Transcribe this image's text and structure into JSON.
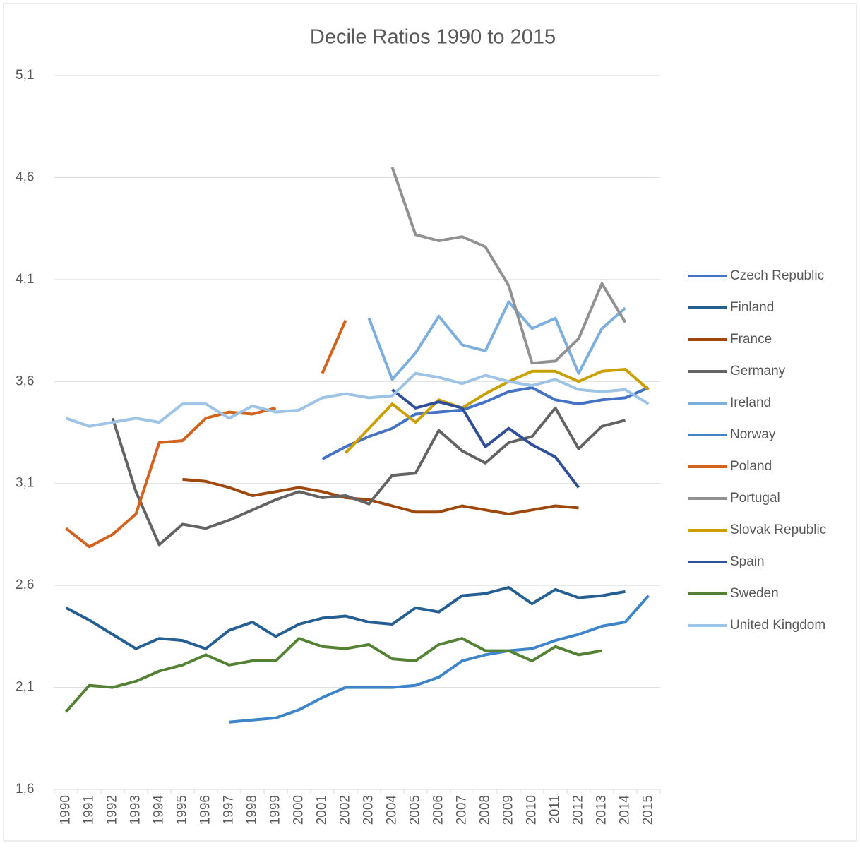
{
  "chart_data": {
    "type": "line",
    "title": "Decile Ratios 1990 to 2015",
    "categories": [
      "1990",
      "1991",
      "1992",
      "1993",
      "1994",
      "1995",
      "1996",
      "1997",
      "1998",
      "1999",
      "2000",
      "2001",
      "2002",
      "2003",
      "2004",
      "2005",
      "2006",
      "2007",
      "2008",
      "2009",
      "2010",
      "2011",
      "2012",
      "2013",
      "2014",
      "2015"
    ],
    "ylim": [
      1.6,
      5.1
    ],
    "yticks": [
      {
        "value": 1.6,
        "label": "1,6"
      },
      {
        "value": 2.1,
        "label": "2,1"
      },
      {
        "value": 2.6,
        "label": "2,6"
      },
      {
        "value": 3.1,
        "label": "3,1"
      },
      {
        "value": 3.6,
        "label": "3,6"
      },
      {
        "value": 4.1,
        "label": "4,1"
      },
      {
        "value": 4.6,
        "label": "4,6"
      },
      {
        "value": 5.1,
        "label": "5,1"
      }
    ],
    "grid": true,
    "legend": "right",
    "series": [
      {
        "name": "Czech Republic",
        "color": "#4472c4",
        "values": [
          null,
          null,
          null,
          null,
          null,
          null,
          null,
          null,
          null,
          null,
          null,
          3.22,
          3.28,
          3.33,
          3.37,
          3.44,
          3.45,
          3.46,
          3.5,
          3.55,
          3.57,
          3.51,
          3.49,
          3.51,
          3.52,
          3.57
        ]
      },
      {
        "name": "Finland",
        "color": "#255e91",
        "values": [
          2.49,
          2.43,
          2.36,
          2.29,
          2.34,
          2.33,
          2.29,
          2.38,
          2.42,
          2.35,
          2.41,
          2.44,
          2.45,
          2.42,
          2.41,
          2.49,
          2.47,
          2.55,
          2.56,
          2.59,
          2.51,
          2.58,
          2.54,
          2.55,
          2.57,
          null
        ]
      },
      {
        "name": "France",
        "color": "#9e480e",
        "values": [
          null,
          null,
          null,
          null,
          null,
          3.12,
          3.11,
          3.08,
          3.04,
          3.06,
          3.08,
          3.06,
          3.03,
          3.02,
          2.99,
          2.96,
          2.96,
          2.99,
          2.97,
          2.95,
          2.97,
          2.99,
          2.98,
          null,
          null,
          null
        ]
      },
      {
        "name": "Germany",
        "color": "#636363",
        "values": [
          null,
          null,
          3.42,
          3.06,
          2.8,
          2.9,
          2.88,
          2.92,
          2.97,
          3.02,
          3.06,
          3.03,
          3.04,
          3.0,
          3.14,
          3.15,
          3.36,
          3.26,
          3.2,
          3.3,
          3.33,
          3.47,
          3.27,
          3.38,
          3.41,
          null
        ]
      },
      {
        "name": "Ireland",
        "color": "#7cafdd",
        "values": [
          null,
          null,
          null,
          null,
          null,
          null,
          null,
          null,
          null,
          null,
          null,
          null,
          null,
          3.91,
          3.61,
          3.74,
          3.92,
          3.78,
          3.75,
          3.99,
          3.86,
          3.91,
          3.64,
          3.86,
          3.96,
          null
        ]
      },
      {
        "name": "Norway",
        "color": "#3d85c8",
        "values": [
          null,
          null,
          null,
          null,
          null,
          null,
          null,
          1.93,
          1.94,
          1.95,
          1.99,
          2.05,
          2.1,
          2.1,
          2.1,
          2.11,
          2.15,
          2.23,
          2.26,
          2.28,
          2.29,
          2.33,
          2.36,
          2.4,
          2.42,
          2.55
        ]
      },
      {
        "name": "Poland",
        "color": "#d2631f",
        "values": [
          2.88,
          2.79,
          2.85,
          2.95,
          3.3,
          3.31,
          3.42,
          3.45,
          3.44,
          3.47,
          null,
          3.64,
          3.9,
          null,
          null,
          null,
          null,
          null,
          null,
          null,
          null,
          null,
          null,
          null,
          null,
          null
        ]
      },
      {
        "name": "Portugal",
        "color": "#919191",
        "values": [
          null,
          null,
          null,
          null,
          null,
          null,
          null,
          null,
          null,
          null,
          null,
          null,
          null,
          null,
          4.65,
          4.32,
          4.29,
          4.31,
          4.26,
          4.07,
          3.69,
          3.7,
          3.81,
          4.08,
          3.89,
          null
        ]
      },
      {
        "name": "Slovak Republic",
        "color": "#c9a000",
        "values": [
          null,
          null,
          null,
          null,
          null,
          null,
          null,
          null,
          null,
          null,
          null,
          null,
          3.25,
          3.37,
          3.49,
          3.4,
          3.51,
          3.47,
          3.54,
          3.6,
          3.65,
          3.65,
          3.6,
          3.65,
          3.66,
          3.56
        ]
      },
      {
        "name": "Spain",
        "color": "#2f4f99",
        "values": [
          null,
          null,
          null,
          null,
          null,
          null,
          null,
          null,
          null,
          null,
          null,
          null,
          null,
          null,
          3.56,
          3.47,
          3.5,
          3.47,
          3.28,
          3.37,
          3.29,
          3.23,
          3.08,
          null,
          null,
          null
        ]
      },
      {
        "name": "Sweden",
        "color": "#548235",
        "values": [
          1.98,
          2.11,
          2.1,
          2.13,
          2.18,
          2.21,
          2.26,
          2.21,
          2.23,
          2.23,
          2.34,
          2.3,
          2.29,
          2.31,
          2.24,
          2.23,
          2.31,
          2.34,
          2.28,
          2.28,
          2.23,
          2.3,
          2.26,
          2.28,
          null,
          null
        ]
      },
      {
        "name": "United Kingdom",
        "color": "#9dc3e6",
        "values": [
          3.42,
          3.38,
          3.4,
          3.42,
          3.4,
          3.49,
          3.49,
          3.42,
          3.48,
          3.45,
          3.46,
          3.52,
          3.54,
          3.52,
          3.53,
          3.64,
          3.62,
          3.59,
          3.63,
          3.6,
          3.58,
          3.61,
          3.56,
          3.55,
          3.56,
          3.49
        ]
      }
    ]
  }
}
